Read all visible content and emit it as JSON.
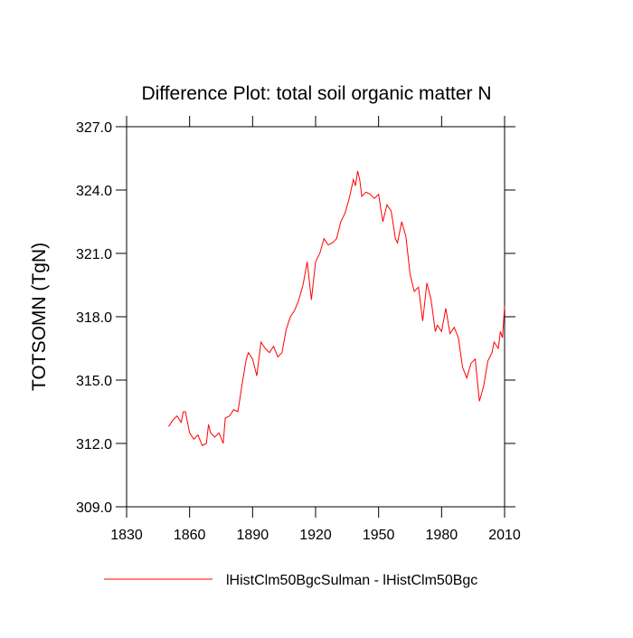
{
  "chart_data": {
    "type": "line",
    "title": "Difference Plot: total soil organic matter N",
    "y_label": "TOTSOMN  (TgN)",
    "x": [
      1850,
      1852,
      1854,
      1856,
      1857,
      1858,
      1860,
      1862,
      1864,
      1866,
      1868,
      1869,
      1870,
      1872,
      1874,
      1876,
      1877,
      1879,
      1881,
      1883,
      1885,
      1887,
      1888,
      1890,
      1892,
      1894,
      1896,
      1898,
      1900,
      1902,
      1904,
      1906,
      1908,
      1910,
      1912,
      1914,
      1916,
      1918,
      1920,
      1922,
      1924,
      1926,
      1928,
      1930,
      1932,
      1934,
      1936,
      1938,
      1939,
      1940,
      1941,
      1942,
      1944,
      1946,
      1948,
      1950,
      1952,
      1954,
      1956,
      1958,
      1959,
      1961,
      1963,
      1965,
      1967,
      1969,
      1971,
      1973,
      1975,
      1977,
      1978,
      1980,
      1982,
      1984,
      1986,
      1988,
      1990,
      1992,
      1994,
      1996,
      1998,
      2000,
      2002,
      2004,
      2005,
      2007,
      2008,
      2009,
      2010
    ],
    "series": [
      {
        "name": "lHistClm50BgcSulman - lHistClm50Bgc",
        "color": "#ff0000",
        "values": [
          312.8,
          313.1,
          313.3,
          313.0,
          313.5,
          313.5,
          312.5,
          312.2,
          312.4,
          311.9,
          312.0,
          312.9,
          312.5,
          312.3,
          312.5,
          312.0,
          313.2,
          313.3,
          313.6,
          313.5,
          314.8,
          316.0,
          316.3,
          316.0,
          315.2,
          316.8,
          316.5,
          316.3,
          316.6,
          316.1,
          316.3,
          317.4,
          318.0,
          318.3,
          318.8,
          319.5,
          320.6,
          318.8,
          320.6,
          321.0,
          321.7,
          321.4,
          321.5,
          321.7,
          322.5,
          322.9,
          323.6,
          324.5,
          324.2,
          324.9,
          324.5,
          323.7,
          323.9,
          323.8,
          323.6,
          323.8,
          322.5,
          323.3,
          323.0,
          321.7,
          321.5,
          322.5,
          321.8,
          320.0,
          319.2,
          319.4,
          317.8,
          319.6,
          318.8,
          317.3,
          317.6,
          317.3,
          318.4,
          317.2,
          317.5,
          317.0,
          315.6,
          315.1,
          315.8,
          316.0,
          314.0,
          314.7,
          315.9,
          316.3,
          316.8,
          316.5,
          317.3,
          317.0,
          318.5
        ]
      }
    ],
    "xlim": [
      1830,
      2010
    ],
    "xticks": [
      1830,
      1860,
      1890,
      1920,
      1950,
      1980,
      2010
    ],
    "ylim": [
      309,
      327
    ],
    "yticks": [
      {
        "value": 309,
        "label": "309.0"
      },
      {
        "value": 312,
        "label": "312.0"
      },
      {
        "value": 315,
        "label": "315.0"
      },
      {
        "value": 318,
        "label": "318.0"
      },
      {
        "value": 321,
        "label": "321.0"
      },
      {
        "value": 324,
        "label": "324.0"
      },
      {
        "value": 327,
        "label": "327.0"
      }
    ],
    "legend": "bottom"
  }
}
